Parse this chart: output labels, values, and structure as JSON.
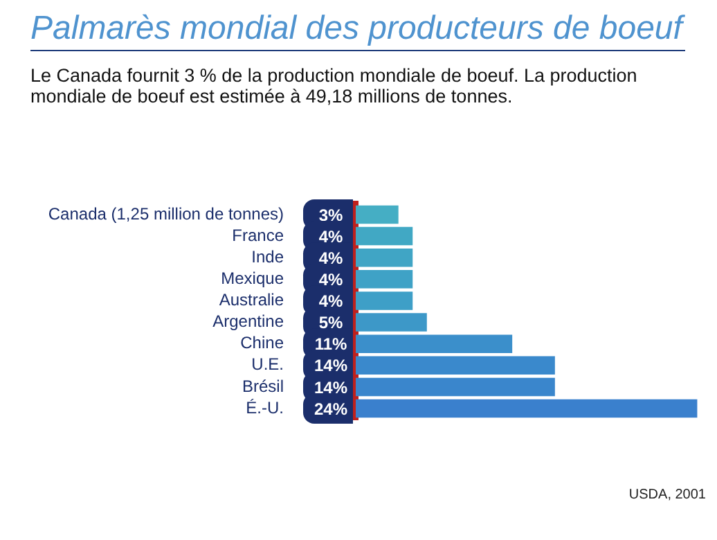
{
  "chart_data": {
    "type": "bar",
    "orientation": "horizontal",
    "title": "Palmarès mondial des producteurs de boeuf",
    "subtitle": "Le Canada fournit 3 % de la production mondiale de boeuf. La production mondiale de boeuf est estimée à 49,18 millions de tonnes.",
    "categories": [
      "Canada (1,25 million de tonnes)",
      "France",
      "Inde",
      "Mexique",
      "Australie",
      "Argentine",
      "Chine",
      "U.E.",
      "Brésil",
      "É.-U."
    ],
    "values": [
      3,
      4,
      4,
      4,
      4,
      5,
      11,
      14,
      14,
      24
    ],
    "value_labels": [
      "3%",
      "4%",
      "4%",
      "4%",
      "4%",
      "5%",
      "11%",
      "14%",
      "14%",
      "24%"
    ],
    "colors": [
      "#45aec4",
      "#41a8c4",
      "#40a5c5",
      "#3fa2c6",
      "#3e9fc7",
      "#3d98c8",
      "#3b8fcb",
      "#3a89cc",
      "#3a86cc",
      "#3a80cd"
    ],
    "annotations": [
      "USDA, 2001"
    ]
  }
}
